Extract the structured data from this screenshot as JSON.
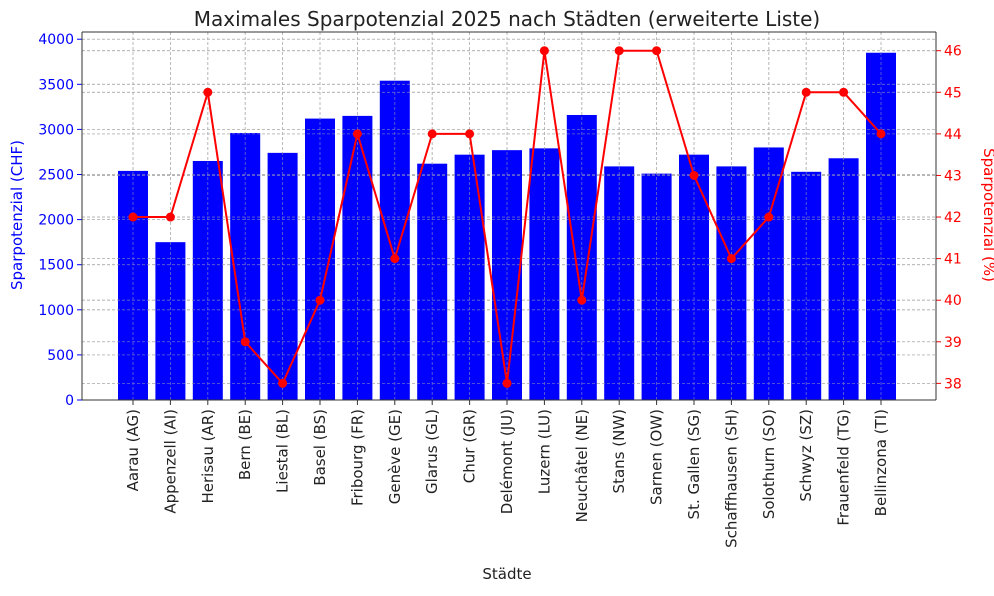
{
  "chart_data": {
    "type": "bar+line",
    "title": "Maximales Sparpotenzial 2025 nach Städten (erweiterte Liste)",
    "xlabel": "Städte",
    "ylabel_left": "Sparpotenzial (CHF)",
    "ylabel_right": "Sparpotenzial (%)",
    "categories": [
      "Aarau (AG)",
      "Appenzell (AI)",
      "Herisau (AR)",
      "Bern (BE)",
      "Liestal (BL)",
      "Basel (BS)",
      "Fribourg (FR)",
      "Genève (GE)",
      "Glarus (GL)",
      "Chur (GR)",
      "Delémont (JU)",
      "Luzern (LU)",
      "Neuchâtel (NE)",
      "Stans (NW)",
      "Sarnen (OW)",
      "St. Gallen (SG)",
      "Schaffhausen (SH)",
      "Solothurn (SO)",
      "Schwyz (SZ)",
      "Frauenfeld (TG)",
      "Bellinzona (TI)"
    ],
    "series": [
      {
        "axis": "left",
        "kind": "bar",
        "color": "#0000ff",
        "values": [
          2540,
          1750,
          2650,
          2960,
          2740,
          3120,
          3150,
          3540,
          2620,
          2720,
          2770,
          2790,
          3160,
          2590,
          2510,
          2720,
          2590,
          2800,
          2530,
          2680,
          3850
        ]
      },
      {
        "axis": "right",
        "kind": "line",
        "color": "#ff0000",
        "values": [
          42,
          42,
          45,
          39,
          38,
          40,
          44,
          41,
          44,
          44,
          38,
          46,
          40,
          46,
          46,
          43,
          41,
          42,
          45,
          45,
          44
        ]
      }
    ],
    "ylim_left": [
      0,
      4080
    ],
    "ylim_right": [
      37.6,
      46.45
    ],
    "yticks_left": [
      "0",
      "500",
      "1000",
      "1500",
      "2000",
      "2500",
      "3000",
      "3500",
      "4000"
    ],
    "yticks_right": [
      "38",
      "39",
      "40",
      "41",
      "42",
      "43",
      "44",
      "45",
      "46"
    ],
    "grid": true,
    "left_axis_color": "#0000ff",
    "right_axis_color": "#ff0000"
  }
}
